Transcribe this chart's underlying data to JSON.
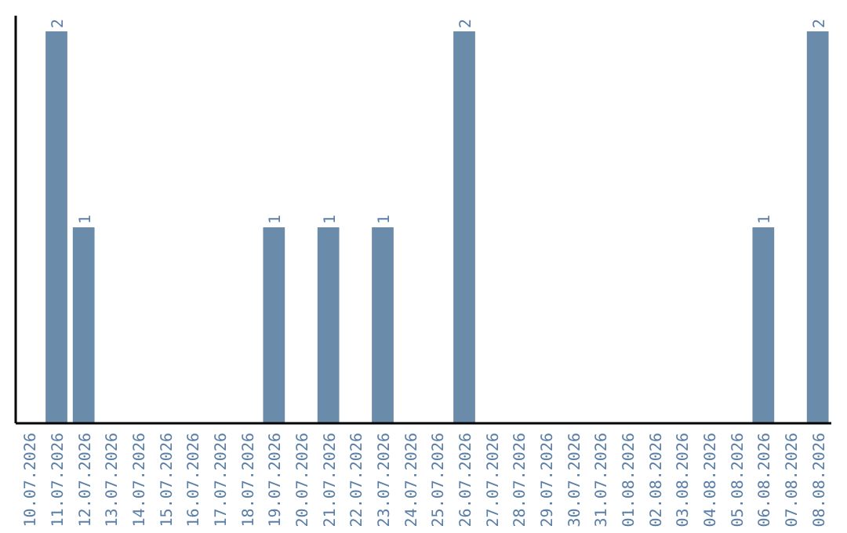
{
  "chart_data": {
    "type": "bar",
    "categories": [
      "10.07.2026",
      "11.07.2026",
      "12.07.2026",
      "13.07.2026",
      "14.07.2026",
      "15.07.2026",
      "16.07.2026",
      "17.07.2026",
      "18.07.2026",
      "19.07.2026",
      "20.07.2026",
      "21.07.2026",
      "22.07.2026",
      "23.07.2026",
      "24.07.2026",
      "25.07.2026",
      "26.07.2026",
      "27.07.2026",
      "28.07.2026",
      "29.07.2026",
      "30.07.2026",
      "31.07.2026",
      "01.08.2026",
      "02.08.2026",
      "03.08.2026",
      "04.08.2026",
      "05.08.2026",
      "06.08.2026",
      "07.08.2026",
      "08.08.2026"
    ],
    "values": [
      0,
      2,
      1,
      0,
      0,
      0,
      0,
      0,
      0,
      1,
      0,
      1,
      0,
      1,
      0,
      0,
      2,
      0,
      0,
      0,
      0,
      0,
      0,
      0,
      0,
      0,
      0,
      1,
      0,
      2
    ],
    "value_labels": [
      null,
      "2",
      "1",
      null,
      null,
      null,
      null,
      null,
      null,
      "1",
      null,
      "1",
      null,
      "1",
      null,
      null,
      "2",
      null,
      null,
      null,
      null,
      null,
      null,
      null,
      null,
      null,
      null,
      "1",
      null,
      "2"
    ],
    "color": "#6a8caa",
    "ylim": [
      0,
      2
    ],
    "tick_labels": "x"
  }
}
